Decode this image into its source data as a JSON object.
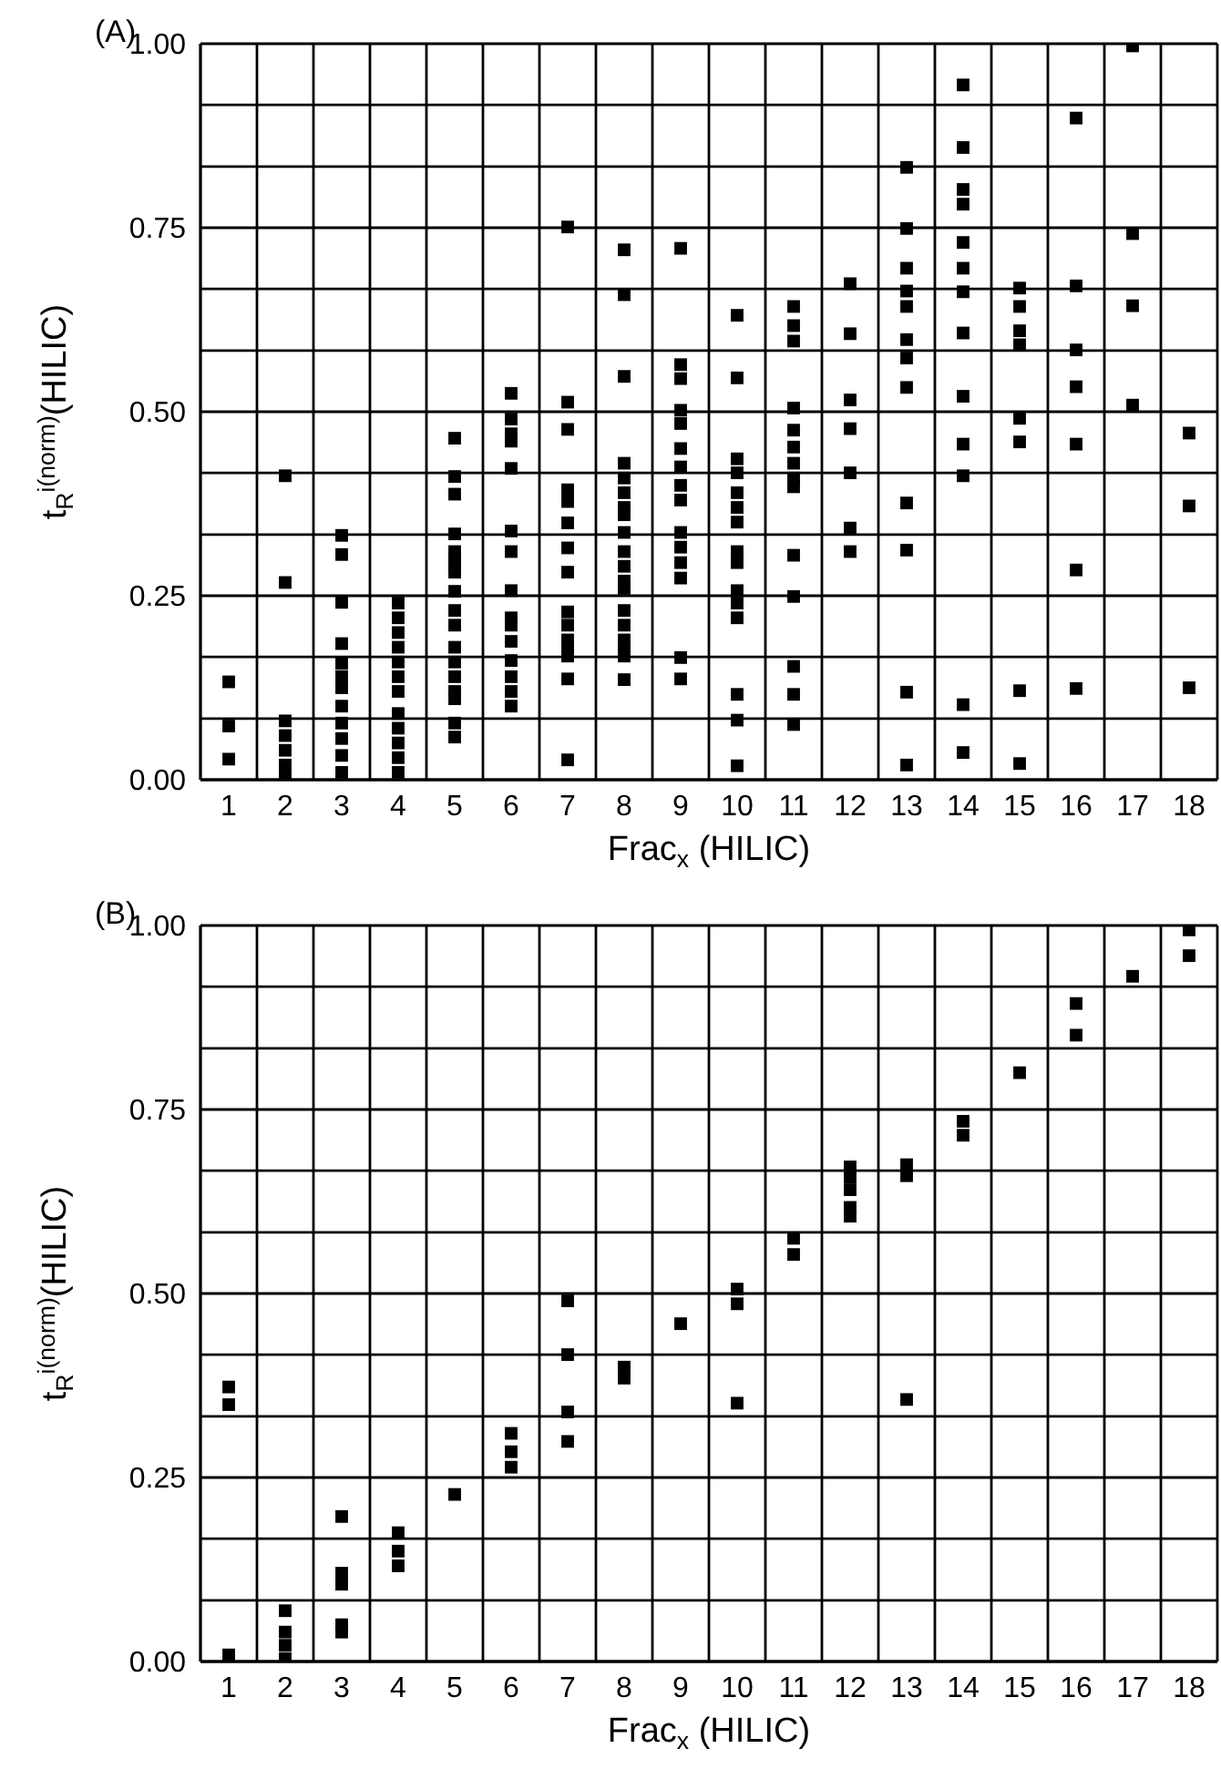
{
  "chart_data": [
    {
      "type": "scatter",
      "title": "(A)",
      "xlabel": "Frac$_{x}$ (HILIC)",
      "ylabel": "t$_{R}$$^{i(norm)}$(HILIC)",
      "color": "#000000",
      "marker": "square",
      "grid": true,
      "x": [
        1,
        1,
        1,
        2,
        2,
        2,
        2,
        2,
        2,
        2,
        3,
        3,
        3,
        3,
        3,
        3,
        3,
        3,
        3,
        3,
        3,
        3,
        4,
        4,
        4,
        4,
        4,
        4,
        4,
        4,
        4,
        4,
        4,
        4,
        5,
        5,
        5,
        5,
        5,
        5,
        5,
        5,
        5,
        5,
        5,
        5,
        5,
        5,
        5,
        5,
        5,
        5,
        6,
        6,
        6,
        6,
        6,
        6,
        6,
        6,
        6,
        6,
        6,
        6,
        6,
        6,
        6,
        7,
        7,
        7,
        7,
        7,
        7,
        7,
        7,
        7,
        7,
        7,
        7,
        7,
        7,
        7,
        8,
        8,
        8,
        8,
        8,
        8,
        8,
        8,
        8,
        8,
        8,
        8,
        8,
        8,
        8,
        8,
        8,
        8,
        8,
        9,
        9,
        9,
        9,
        9,
        9,
        9,
        9,
        9,
        9,
        9,
        9,
        9,
        9,
        9,
        10,
        10,
        10,
        10,
        10,
        10,
        10,
        10,
        10,
        10,
        10,
        10,
        10,
        10,
        10,
        11,
        11,
        11,
        11,
        11,
        11,
        11,
        11,
        11,
        11,
        11,
        11,
        11,
        11,
        12,
        12,
        12,
        12,
        12,
        12,
        12,
        13,
        13,
        13,
        13,
        13,
        13,
        13,
        13,
        13,
        13,
        13,
        13,
        14,
        14,
        14,
        14,
        14,
        14,
        14,
        14,
        14,
        14,
        14,
        14,
        14,
        15,
        15,
        15,
        15,
        15,
        15,
        15,
        15,
        16,
        16,
        16,
        16,
        16,
        16,
        16,
        17,
        17,
        17,
        17,
        18,
        18,
        18
      ],
      "values": [
        0.133,
        0.073,
        0.028,
        0.413,
        0.268,
        0.08,
        0.06,
        0.04,
        0.02,
        0.005,
        0.332,
        0.306,
        0.241,
        0.185,
        0.158,
        0.14,
        0.125,
        0.1,
        0.077,
        0.056,
        0.033,
        0.01,
        0.24,
        0.22,
        0.2,
        0.18,
        0.16,
        0.14,
        0.12,
        0.09,
        0.07,
        0.05,
        0.03,
        0.01,
        0.464,
        0.412,
        0.388,
        0.334,
        0.31,
        0.3,
        0.29,
        0.282,
        0.256,
        0.23,
        0.21,
        0.18,
        0.16,
        0.14,
        0.12,
        0.11,
        0.077,
        0.058,
        0.525,
        0.49,
        0.47,
        0.46,
        0.423,
        0.338,
        0.31,
        0.257,
        0.22,
        0.21,
        0.188,
        0.162,
        0.14,
        0.12,
        0.1,
        0.751,
        0.513,
        0.476,
        0.394,
        0.378,
        0.349,
        0.315,
        0.282,
        0.228,
        0.21,
        0.19,
        0.18,
        0.168,
        0.137,
        0.027,
        0.72,
        0.659,
        0.548,
        0.43,
        0.41,
        0.39,
        0.37,
        0.36,
        0.336,
        0.31,
        0.29,
        0.27,
        0.26,
        0.23,
        0.21,
        0.19,
        0.18,
        0.168,
        0.136,
        0.722,
        0.564,
        0.545,
        0.502,
        0.484,
        0.45,
        0.425,
        0.4,
        0.38,
        0.336,
        0.316,
        0.295,
        0.274,
        0.166,
        0.137,
        0.631,
        0.546,
        0.436,
        0.417,
        0.39,
        0.37,
        0.35,
        0.31,
        0.295,
        0.257,
        0.24,
        0.22,
        0.116,
        0.081,
        0.019,
        0.643,
        0.617,
        0.596,
        0.505,
        0.475,
        0.452,
        0.43,
        0.41,
        0.398,
        0.305,
        0.249,
        0.154,
        0.116,
        0.075,
        0.674,
        0.606,
        0.516,
        0.477,
        0.417,
        0.342,
        0.31,
        0.832,
        0.749,
        0.695,
        0.664,
        0.643,
        0.598,
        0.573,
        0.533,
        0.376,
        0.312,
        0.119,
        0.02,
        0.944,
        0.859,
        0.802,
        0.782,
        0.73,
        0.695,
        0.663,
        0.607,
        0.521,
        0.456,
        0.413,
        0.102,
        0.037,
        0.668,
        0.643,
        0.61,
        0.591,
        0.491,
        0.459,
        0.121,
        0.022,
        0.899,
        0.671,
        0.584,
        0.534,
        0.456,
        0.285,
        0.124,
        0.997,
        0.742,
        0.644,
        0.509,
        0.471,
        0.372,
        0.125
      ],
      "xlim": [
        0.5,
        18.5
      ],
      "xticks": [
        {
          "value": 0.5,
          "label": null
        },
        1,
        {
          "value": 1.5,
          "label": null
        },
        2,
        {
          "value": 2.5,
          "label": null
        },
        3,
        {
          "value": 3.5,
          "label": null
        },
        4,
        {
          "value": 4.5,
          "label": null
        },
        5,
        {
          "value": 5.5,
          "label": null
        },
        6,
        {
          "value": 6.5,
          "label": null
        },
        7,
        {
          "value": 7.5,
          "label": null
        },
        8,
        {
          "value": 8.5,
          "label": null
        },
        9,
        {
          "value": 9.5,
          "label": null
        },
        10,
        {
          "value": 10.5,
          "label": null
        },
        11,
        {
          "value": 11.5,
          "label": null
        },
        12,
        {
          "value": 12.5,
          "label": null
        },
        13,
        {
          "value": 13.5,
          "label": null
        },
        14,
        {
          "value": 14.5,
          "label": null
        },
        15,
        {
          "value": 15.5,
          "label": null
        },
        16,
        {
          "value": 16.5,
          "label": null
        },
        17,
        {
          "value": 17.5,
          "label": null
        },
        18,
        {
          "value": 18.5,
          "label": null
        }
      ],
      "ylim": [
        0,
        1
      ],
      "yticks": [
        {
          "value": 0,
          "label": "0.00"
        },
        {
          "value": 0.083,
          "label": null
        },
        {
          "value": 0.167,
          "label": null
        },
        {
          "value": 0.25,
          "label": "0.25"
        },
        {
          "value": 0.333,
          "label": null
        },
        {
          "value": 0.417,
          "label": null
        },
        {
          "value": 0.5,
          "label": "0.50"
        },
        {
          "value": 0.583,
          "label": null
        },
        {
          "value": 0.667,
          "label": null
        },
        {
          "value": 0.75,
          "label": "0.75"
        },
        {
          "value": 0.833,
          "label": null
        },
        {
          "value": 0.917,
          "label": null
        },
        {
          "value": 1,
          "label": "1.00"
        }
      ]
    },
    {
      "type": "scatter",
      "title": "(B)",
      "xlabel": "Frac$_{x}$ (HILIC)",
      "ylabel": "t$_{R}$$^{i(norm)}$(HILIC)",
      "color": "#000000",
      "marker": "square",
      "grid": true,
      "x": [
        1,
        1,
        1,
        2,
        2,
        2,
        2,
        3,
        3,
        3,
        3,
        3,
        4,
        4,
        4,
        5,
        6,
        6,
        6,
        7,
        7,
        7,
        7,
        8,
        8,
        9,
        10,
        10,
        10,
        11,
        11,
        12,
        12,
        12,
        12,
        12,
        13,
        13,
        13,
        14,
        14,
        15,
        16,
        16,
        17,
        18,
        18
      ],
      "values": [
        0.373,
        0.349,
        0.009,
        0.069,
        0.04,
        0.022,
        0.004,
        0.197,
        0.12,
        0.105,
        0.05,
        0.04,
        0.175,
        0.15,
        0.13,
        0.227,
        0.31,
        0.285,
        0.264,
        0.49,
        0.417,
        0.339,
        0.299,
        0.4,
        0.385,
        0.459,
        0.506,
        0.486,
        0.351,
        0.575,
        0.553,
        0.672,
        0.658,
        0.641,
        0.617,
        0.605,
        0.675,
        0.66,
        0.356,
        0.734,
        0.715,
        0.8,
        0.894,
        0.851,
        0.931,
        0.994,
        0.959
      ],
      "xlim": [
        0.5,
        18.5
      ],
      "xticks": [
        {
          "value": 0.5,
          "label": null
        },
        1,
        {
          "value": 1.5,
          "label": null
        },
        2,
        {
          "value": 2.5,
          "label": null
        },
        3,
        {
          "value": 3.5,
          "label": null
        },
        4,
        {
          "value": 4.5,
          "label": null
        },
        5,
        {
          "value": 5.5,
          "label": null
        },
        6,
        {
          "value": 6.5,
          "label": null
        },
        7,
        {
          "value": 7.5,
          "label": null
        },
        8,
        {
          "value": 8.5,
          "label": null
        },
        9,
        {
          "value": 9.5,
          "label": null
        },
        10,
        {
          "value": 10.5,
          "label": null
        },
        11,
        {
          "value": 11.5,
          "label": null
        },
        12,
        {
          "value": 12.5,
          "label": null
        },
        13,
        {
          "value": 13.5,
          "label": null
        },
        14,
        {
          "value": 14.5,
          "label": null
        },
        15,
        {
          "value": 15.5,
          "label": null
        },
        16,
        {
          "value": 16.5,
          "label": null
        },
        17,
        {
          "value": 17.5,
          "label": null
        },
        18,
        {
          "value": 18.5,
          "label": null
        }
      ],
      "ylim": [
        0,
        1
      ],
      "yticks": [
        {
          "value": 0,
          "label": "0.00"
        },
        {
          "value": 0.083,
          "label": null
        },
        {
          "value": 0.167,
          "label": null
        },
        {
          "value": 0.25,
          "label": "0.25"
        },
        {
          "value": 0.333,
          "label": null
        },
        {
          "value": 0.417,
          "label": null
        },
        {
          "value": 0.5,
          "label": "0.50"
        },
        {
          "value": 0.583,
          "label": null
        },
        {
          "value": 0.667,
          "label": null
        },
        {
          "value": 0.75,
          "label": "0.75"
        },
        {
          "value": 0.833,
          "label": null
        },
        {
          "value": 0.917,
          "label": null
        },
        {
          "value": 1,
          "label": "1.00"
        }
      ]
    }
  ]
}
